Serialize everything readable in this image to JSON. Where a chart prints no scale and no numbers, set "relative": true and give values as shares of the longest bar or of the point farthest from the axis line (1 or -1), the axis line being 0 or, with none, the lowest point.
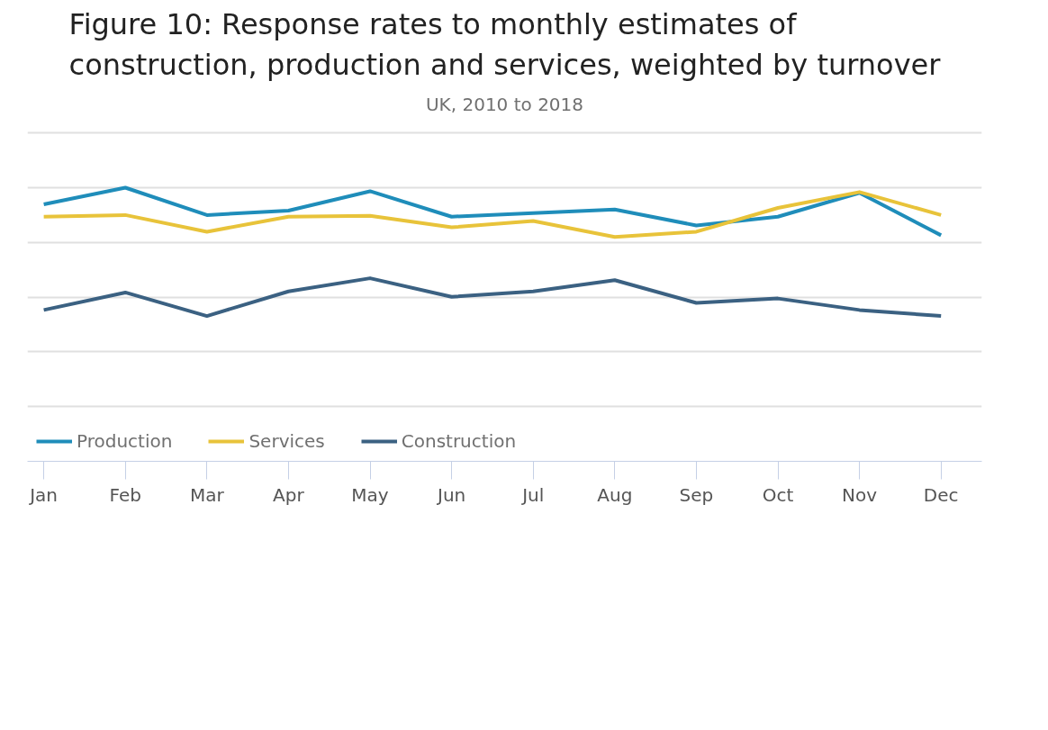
{
  "chart_data": {
    "type": "line",
    "title": "Figure 10: Response rates to monthly estimates of\nconstruction, production and services, weighted by turnover",
    "subtitle": "UK, 2010 to 2018",
    "categories": [
      "Jan",
      "Feb",
      "Mar",
      "Apr",
      "May",
      "Jun",
      "Jul",
      "Aug",
      "Sep",
      "Oct",
      "Nov",
      "Dec"
    ],
    "relative": true,
    "grid": "y",
    "tick_labels": "x",
    "legend": "bottom left",
    "line_style": "solid",
    "series": [
      {
        "name": "Production",
        "color": "#1f8dba",
        "values": [
          0.939,
          1,
          0.9,
          0.916,
          0.987,
          0.894,
          0.907,
          0.92,
          0.862,
          0.894,
          0.981,
          0.826
        ]
      },
      {
        "name": "Services",
        "color": "#e8c33a",
        "values": [
          0.894,
          0.9,
          0.839,
          0.894,
          0.897,
          0.855,
          0.878,
          0.82,
          0.839,
          0.926,
          0.984,
          0.9
        ]
      },
      {
        "name": "Construction",
        "color": "#3b6182",
        "values": [
          0.553,
          0.617,
          0.531,
          0.621,
          0.669,
          0.601,
          0.621,
          0.662,
          0.579,
          0.595,
          0.553,
          0.531
        ]
      }
    ]
  }
}
